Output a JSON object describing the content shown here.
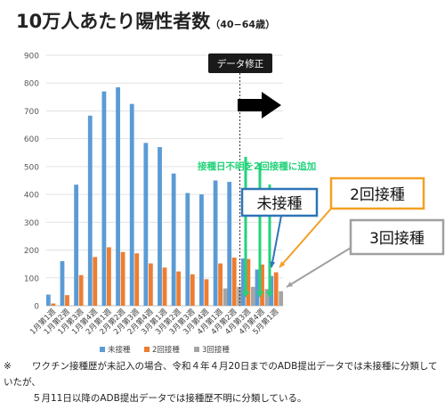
{
  "title": {
    "main": "10万人あたり陽性者数",
    "sub": "（40−64歳）"
  },
  "chart_data": {
    "type": "bar",
    "categories": [
      "1月第1週",
      "1月第2週",
      "1月第3週",
      "1月第4週",
      "2月第1週",
      "2月第2週",
      "2月第3週",
      "2月第4週",
      "3月第1週",
      "3月第2週",
      "3月第3週",
      "3月第4週",
      "4月第1週",
      "4月第2週",
      "4月第3週",
      "4月第4週",
      "5月第1週"
    ],
    "series": [
      {
        "name": "未接種",
        "color": "#5b9bd5",
        "values": [
          40,
          160,
          435,
          683,
          770,
          785,
          725,
          585,
          570,
          475,
          405,
          400,
          450,
          445,
          170,
          130,
          107
        ]
      },
      {
        "name": "2回接種",
        "color": "#ed7d31",
        "values": [
          8,
          38,
          110,
          175,
          210,
          193,
          188,
          152,
          137,
          123,
          113,
          95,
          152,
          173,
          168,
          148,
          120
        ]
      },
      {
        "name": "3回接種",
        "color": "#a5a5a5",
        "values": [
          0,
          0,
          0,
          0,
          0,
          0,
          0,
          0,
          0,
          0,
          0,
          0,
          62,
          68,
          68,
          60,
          52
        ]
      }
    ],
    "ylim": [
      0,
      900
    ],
    "yticks": [
      0,
      100,
      200,
      300,
      400,
      500,
      600,
      700,
      800,
      900
    ],
    "grid": true,
    "legend_position": "bottom",
    "xlabel": "",
    "ylabel": ""
  },
  "annotations": {
    "data_fix": "データ修正",
    "added_note": "接種日不明を2回接種に追加",
    "box_unvaccinated": "未接種",
    "box_two_dose": "2回接種",
    "box_three_dose": "3回接種"
  },
  "colors": {
    "bar_unvaccinated": "#5b9bd5",
    "bar_two_dose": "#ed7d31",
    "bar_three_dose": "#a5a5a5",
    "annotation_green": "#22d37a",
    "box_blue": "#2e75b6",
    "box_orange": "#f4a024",
    "box_gray": "#a0a0a0"
  },
  "footnote": {
    "mark": "※",
    "line1": "ワクチン接種歴が未記入の場合、令和４年４月20日までのADB提出データでは未接種に分類していたが、",
    "line2": "５月11日以降のADB提出データでは接種歴不明に分類している。"
  }
}
